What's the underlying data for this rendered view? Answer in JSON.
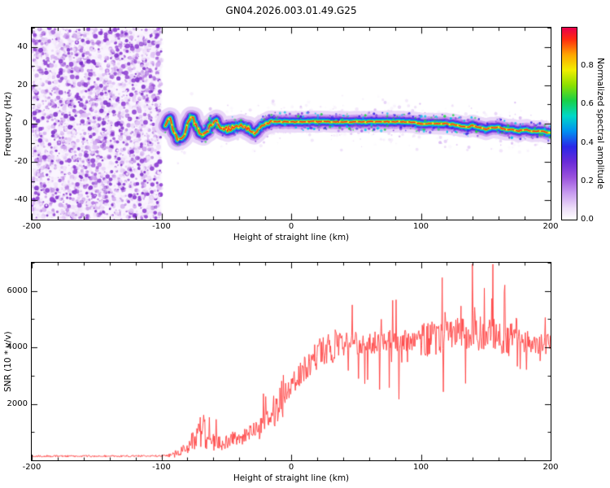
{
  "title": "GN04.2026.003.01.49.G25",
  "colors": {
    "background": "#ffffff",
    "frame": "#000000",
    "snr_line": "#ff4040"
  },
  "chart_data": [
    {
      "id": "spectrogram",
      "type": "heatmap",
      "xlabel": "Height of straight line (km)",
      "ylabel": "Frequency (Hz)",
      "xlim": [
        -200,
        200
      ],
      "ylim": [
        -50,
        50
      ],
      "x_ticks": [
        "-200",
        "-100",
        "0",
        "100",
        "200"
      ],
      "y_ticks": [
        "-40",
        "-20",
        "0",
        "20",
        "40"
      ],
      "x_minor_step": 20,
      "y_minor_step": 10,
      "grid": false,
      "colorbar": {
        "label": "Normalized spectral amplitude",
        "ticks": [
          "0.0",
          "0.2",
          "0.4",
          "0.6",
          "0.8"
        ],
        "range": [
          0,
          1
        ],
        "stops": [
          [
            0.0,
            "#ffffff"
          ],
          [
            0.06,
            "#ecdcf8"
          ],
          [
            0.14,
            "#c79aef"
          ],
          [
            0.22,
            "#9a52dc"
          ],
          [
            0.3,
            "#6a2bd8"
          ],
          [
            0.38,
            "#2a28e8"
          ],
          [
            0.46,
            "#0090f0"
          ],
          [
            0.54,
            "#00d8c8"
          ],
          [
            0.62,
            "#18d048"
          ],
          [
            0.7,
            "#8ce000"
          ],
          [
            0.78,
            "#f2ee00"
          ],
          [
            0.86,
            "#ffa400"
          ],
          [
            0.94,
            "#ff2a10"
          ],
          [
            1.0,
            "#e8004c"
          ]
        ]
      },
      "noise_region": {
        "x_range": [
          -200,
          -100
        ],
        "amplitude_range": [
          0,
          0.35
        ],
        "description": "dense low-amplitude purple speckle noise filling full frequency range"
      },
      "signal_track": {
        "description": "narrow high-amplitude signal ridge near 0 Hz from -100 km to 200 km; red core ~1.0 amplitude surrounded by rainbow halo",
        "x": [
          -97,
          -94,
          -91,
          -88,
          -85,
          -82,
          -79,
          -76,
          -73,
          -70,
          -67,
          -64,
          -61,
          -58,
          -55,
          -52,
          -49,
          -46,
          -43,
          -40,
          -37,
          -34,
          -31,
          -28,
          -25,
          -22,
          -19,
          -16,
          -13,
          -10,
          -5,
          0,
          10,
          20,
          30,
          40,
          50,
          60,
          70,
          80,
          90,
          100,
          110,
          120,
          130,
          135,
          140,
          145,
          150,
          155,
          160,
          165,
          170,
          175,
          180,
          185,
          190,
          195,
          200
        ],
        "freq": [
          -1,
          4,
          -3,
          -8,
          -9,
          -5,
          1,
          3,
          -2,
          -5,
          -6,
          -3,
          0,
          1,
          -1,
          -2,
          -3,
          -2,
          -1,
          -2,
          -1,
          -2,
          -4,
          -5,
          -3,
          -1,
          0,
          1,
          1,
          1,
          1,
          1,
          1,
          1,
          1,
          1,
          1,
          1,
          1,
          1,
          1,
          0,
          0,
          0,
          -1,
          -2,
          -1,
          -2,
          -3,
          -2,
          -2,
          -3,
          -3,
          -4,
          -3,
          -4,
          -4,
          -4,
          -5
        ],
        "core_amplitude": 1.0
      }
    },
    {
      "id": "snr",
      "type": "line",
      "xlabel": "Height of straight line (km)",
      "ylabel": "SNR (10 * v/v)",
      "xlim": [
        -200,
        200
      ],
      "ylim": [
        0,
        7000
      ],
      "x_ticks": [
        "-200",
        "-100",
        "0",
        "100",
        "200"
      ],
      "y_ticks": [
        "2000",
        "4000",
        "6000"
      ],
      "x_minor_step": 20,
      "y_minor_step": 1000,
      "grid": false,
      "series": [
        {
          "name": "SNR",
          "color": "#ff4040",
          "x": [
            -200,
            -120,
            -100,
            -92,
            -85,
            -78,
            -72,
            -68,
            -62,
            -55,
            -48,
            -40,
            -32,
            -25,
            -18,
            -12,
            -6,
            0,
            6,
            12,
            20,
            28,
            35,
            50,
            70,
            90,
            110,
            130,
            150,
            165,
            180,
            200
          ],
          "y": [
            150,
            150,
            160,
            180,
            300,
            550,
            900,
            1100,
            650,
            550,
            700,
            800,
            950,
            1100,
            1400,
            1800,
            2300,
            2600,
            3000,
            3300,
            3700,
            3950,
            4100,
            4150,
            4200,
            4250,
            4300,
            4450,
            4500,
            4300,
            4200,
            4100
          ],
          "noise_note": "flat noise floor ~150 below -95 km; rises steeply between -20 and +30 km; strong fluctuations ~4000-4500 above 30 km with spikes to ~7000 between 110 and 170 km"
        }
      ]
    }
  ]
}
